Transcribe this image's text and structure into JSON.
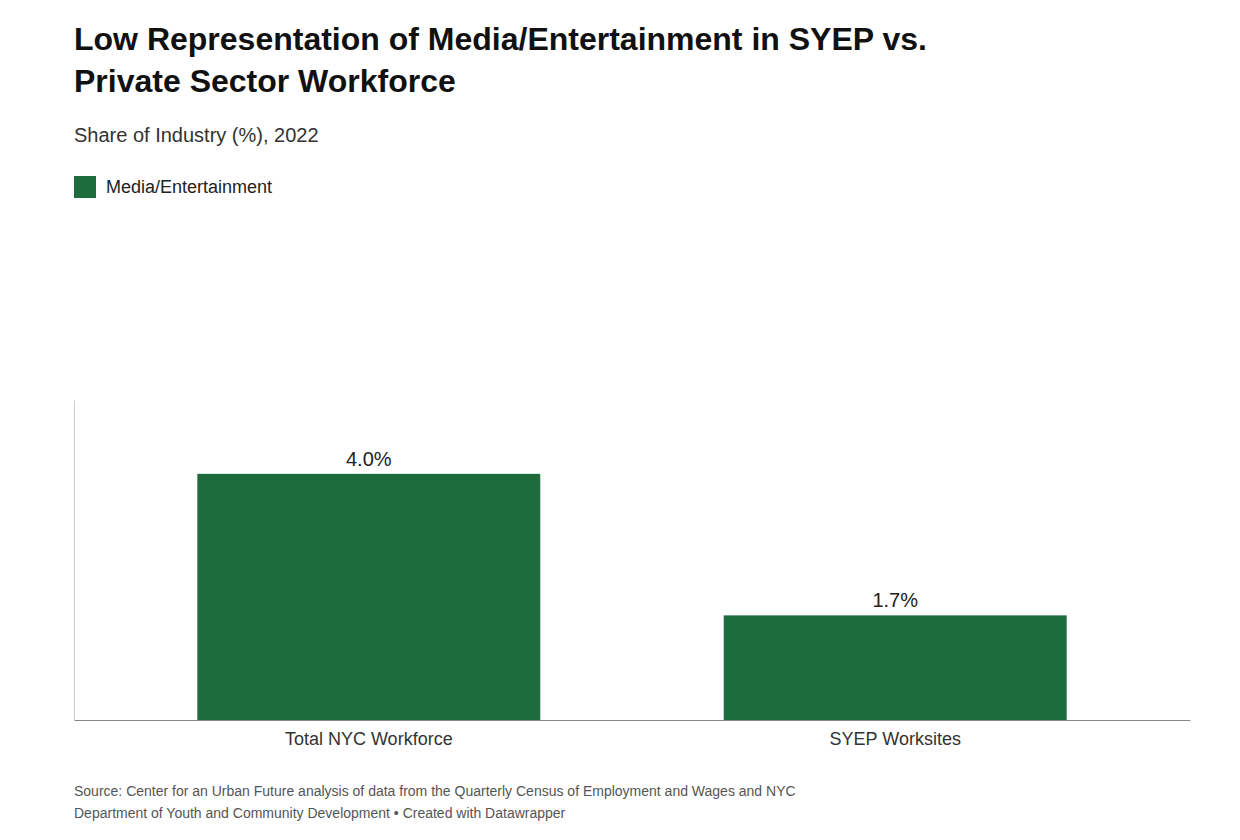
{
  "chart_data": {
    "type": "bar",
    "title": "Low Representation of Media/Entertainment in SYEP vs.\nPrivate Sector Workforce",
    "subtitle": "Share of Industry (%), 2022",
    "source": "Source: Center for an Urban Future analysis of data from the Quarterly Census of Employment and Wages and NYC\nDepartment of Youth and Community Development • Created with Datawrapper",
    "categories": [
      "Total NYC Workforce",
      "SYEP Worksites"
    ],
    "series": [
      {
        "name": "Media/Entertainment",
        "color": "#1e6b3e",
        "values": [
          4.0,
          1.7
        ],
        "value_labels": [
          "4.0%",
          "1.7%"
        ]
      }
    ],
    "ylim": [
      0,
      5.2
    ],
    "grid": false,
    "legend": "top-left",
    "data_labels": true,
    "tick_labels": "x"
  }
}
